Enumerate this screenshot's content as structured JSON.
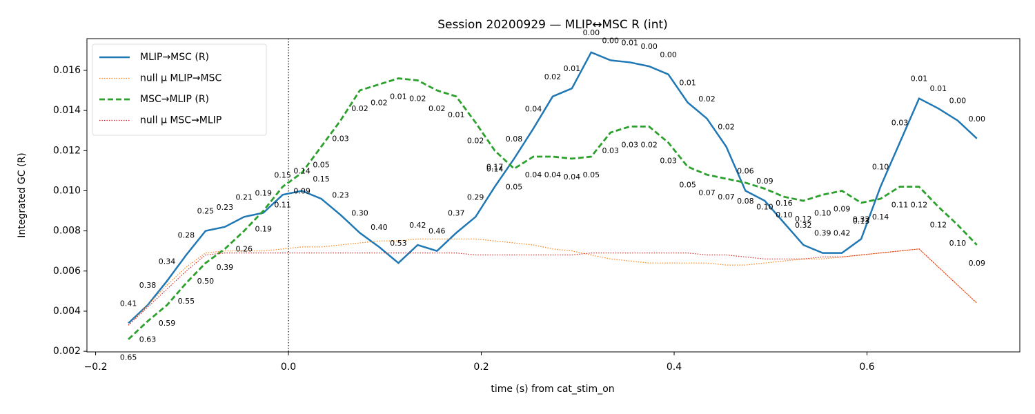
{
  "chart_data": {
    "type": "line",
    "title": "Session 20200929 — MLIP↔MSC R (int)",
    "x_label": "time (s) from cat_stim_on",
    "y_label": "Integrated GC (R)",
    "x": [
      -0.166,
      -0.146,
      -0.126,
      -0.106,
      -0.086,
      -0.066,
      -0.046,
      -0.026,
      -0.006,
      0.014,
      0.034,
      0.054,
      0.074,
      0.094,
      0.114,
      0.134,
      0.154,
      0.174,
      0.194,
      0.214,
      0.234,
      0.254,
      0.274,
      0.294,
      0.314,
      0.334,
      0.354,
      0.374,
      0.394,
      0.414,
      0.434,
      0.454,
      0.474,
      0.494,
      0.514,
      0.534,
      0.554,
      0.574,
      0.594,
      0.614,
      0.634,
      0.654,
      0.674,
      0.694,
      0.714
    ],
    "series": [
      {
        "name": "MLIP→MSC (R)",
        "color": "#1f77b4",
        "style": "solid",
        "values": [
          0.0034,
          0.0043,
          0.0055,
          0.0068,
          0.008,
          0.0082,
          0.0087,
          0.0089,
          0.0098,
          0.01,
          0.0096,
          0.0088,
          0.0079,
          0.0072,
          0.0064,
          0.0073,
          0.007,
          0.0079,
          0.0087,
          0.0102,
          0.0116,
          0.0131,
          0.0147,
          0.0151,
          0.0169,
          0.0165,
          0.0164,
          0.0162,
          0.0158,
          0.0144,
          0.0136,
          0.0122,
          0.01,
          0.0095,
          0.0084,
          0.0073,
          0.0069,
          0.0069,
          0.0076,
          0.0102,
          0.0124,
          0.0146,
          0.0141,
          0.0135,
          0.0126
        ],
        "annotations": [
          "0.41",
          "0.38",
          "0.34",
          "0.28",
          "0.25",
          "0.23",
          "0.21",
          "0.19",
          "0.15",
          "0.14",
          "0.15",
          "0.23",
          "0.30",
          "0.40",
          "0.53",
          "0.42",
          "0.46",
          "0.37",
          "0.29",
          "0.17",
          "0.08",
          "0.04",
          "0.02",
          "0.01",
          "0.00",
          "0.00",
          "0.01",
          "0.00",
          "0.00",
          "0.01",
          "0.02",
          "0.02",
          "0.06",
          "0.09",
          "0.16",
          "0.32",
          "0.39",
          "0.42",
          "0.32",
          "0.10",
          "0.03",
          "0.01",
          "0.01",
          "0.00",
          "0.00"
        ]
      },
      {
        "name": "null μ MLIP→MSC",
        "color": "#ff7f0e",
        "style": "dotted",
        "values": [
          0.0033,
          0.0043,
          0.0053,
          0.0062,
          0.0069,
          0.007,
          0.007,
          0.007,
          0.0071,
          0.0072,
          0.0072,
          0.0073,
          0.0074,
          0.0075,
          0.0075,
          0.0076,
          0.0076,
          0.0076,
          0.0076,
          0.0075,
          0.0074,
          0.0073,
          0.0071,
          0.007,
          0.0068,
          0.0066,
          0.0065,
          0.0064,
          0.0064,
          0.0064,
          0.0064,
          0.0063,
          0.0063,
          0.0064,
          0.0065,
          0.0066,
          0.0066,
          0.0067,
          0.0068,
          0.0069,
          0.007,
          0.0071,
          0.0062,
          0.0053,
          0.0044
        ]
      },
      {
        "name": "MSC→MLIP (R)",
        "color": "#2ca02c",
        "style": "dashed",
        "values": [
          0.0026,
          0.0035,
          0.0043,
          0.0054,
          0.0064,
          0.0071,
          0.008,
          0.009,
          0.0102,
          0.0109,
          0.0122,
          0.0135,
          0.015,
          0.0153,
          0.0156,
          0.0155,
          0.015,
          0.0147,
          0.0134,
          0.012,
          0.0111,
          0.0117,
          0.0117,
          0.0116,
          0.0117,
          0.0129,
          0.0132,
          0.0132,
          0.0124,
          0.0112,
          0.0108,
          0.0106,
          0.0104,
          0.0101,
          0.0097,
          0.0095,
          0.0098,
          0.01,
          0.0094,
          0.0096,
          0.0102,
          0.0102,
          0.0092,
          0.0083,
          0.0073
        ],
        "annotations": [
          "0.65",
          "0.63",
          "0.59",
          "0.55",
          "0.50",
          "0.39",
          "0.26",
          "0.19",
          "0.11",
          "0.09",
          "0.05",
          "0.03",
          "0.02",
          "0.02",
          "0.01",
          "0.02",
          "0.02",
          "0.01",
          "0.02",
          "0.14",
          "0.05",
          "0.04",
          "0.04",
          "0.04",
          "0.05",
          "0.03",
          "0.03",
          "0.02",
          "0.03",
          "0.05",
          "0.07",
          "0.07",
          "0.08",
          "0.10",
          "0.10",
          "0.12",
          "0.10",
          "0.09",
          "0.13",
          "0.14",
          "0.11",
          "0.12",
          "0.12",
          "0.10",
          "0.09"
        ]
      },
      {
        "name": "null μ MSC→MLIP",
        "color": "#d62728",
        "style": "dotted",
        "values": [
          0.0033,
          0.0042,
          0.0051,
          0.006,
          0.0068,
          0.0069,
          0.0069,
          0.0069,
          0.0069,
          0.0069,
          0.0069,
          0.0069,
          0.0069,
          0.0069,
          0.0069,
          0.0069,
          0.0069,
          0.0069,
          0.0068,
          0.0068,
          0.0068,
          0.0068,
          0.0068,
          0.0068,
          0.0069,
          0.0069,
          0.0069,
          0.0069,
          0.0069,
          0.0069,
          0.0068,
          0.0068,
          0.0067,
          0.0066,
          0.0066,
          0.0066,
          0.0067,
          0.0067,
          0.0068,
          0.0069,
          0.007,
          0.0071,
          0.0062,
          0.0053,
          0.0044
        ]
      }
    ],
    "xlim": [
      -0.209,
      0.7585
    ],
    "ylim": [
      0.00197,
      0.01758
    ],
    "xticks": [
      {
        "value": -0.2,
        "label": "−0.2"
      },
      {
        "value": 0,
        "label": "0.0"
      },
      0.2,
      0.4,
      0.6
    ],
    "yticks": [
      0.002,
      0.004,
      0.006,
      0.008,
      {
        "value": 0.01,
        "label": "0.010"
      },
      0.012,
      0.014,
      0.016
    ],
    "vline": 0,
    "legend": "upper left",
    "grid": false
  }
}
